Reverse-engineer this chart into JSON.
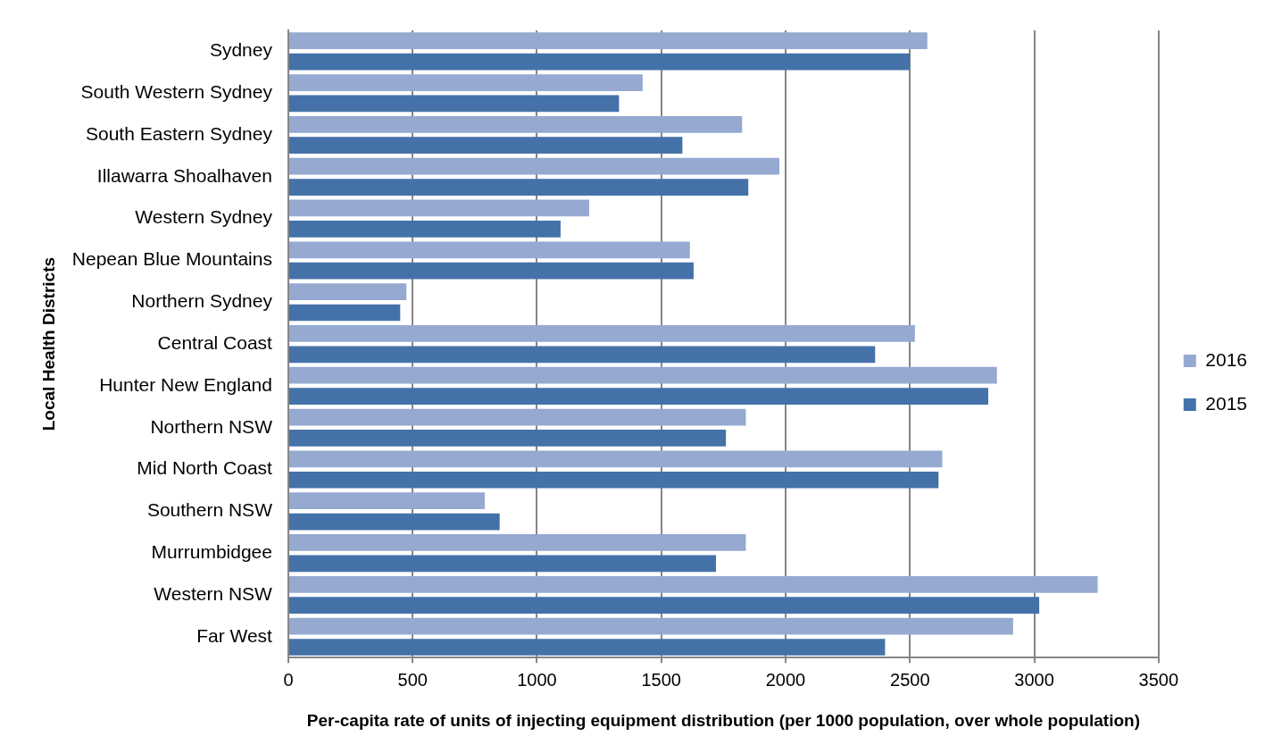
{
  "chart_data": {
    "type": "bar",
    "orientation": "horizontal",
    "xlabel": "Per-capita rate of units of injecting equipment distribution (per 1000 population, over whole population)",
    "ylabel": "Local Health Districts",
    "categories": [
      "Sydney",
      "South Western Sydney",
      "South Eastern Sydney",
      "Illawarra Shoalhaven",
      "Western Sydney",
      "Nepean Blue Mountains",
      "Northern Sydney",
      "Central Coast",
      "Hunter New England",
      "Northern NSW",
      "Mid North Coast",
      "Southern NSW",
      "Murrumbidgee",
      "Western NSW",
      "Far West"
    ],
    "series": [
      {
        "name": "2016",
        "color": "#95a9d1",
        "values": [
          2570,
          1425,
          1825,
          1975,
          1210,
          1615,
          475,
          2520,
          2850,
          1840,
          2630,
          790,
          1840,
          3255,
          2915
        ]
      },
      {
        "name": "2015",
        "color": "#4472a8",
        "values": [
          2500,
          1330,
          1585,
          1850,
          1095,
          1630,
          450,
          2360,
          2815,
          1760,
          2615,
          850,
          1720,
          3020,
          2400
        ]
      }
    ],
    "xlim": [
      0,
      3500
    ],
    "xticks": [
      0,
      500,
      1000,
      1500,
      2000,
      2500,
      3000,
      3500
    ],
    "grid": "x",
    "legend": "right"
  }
}
